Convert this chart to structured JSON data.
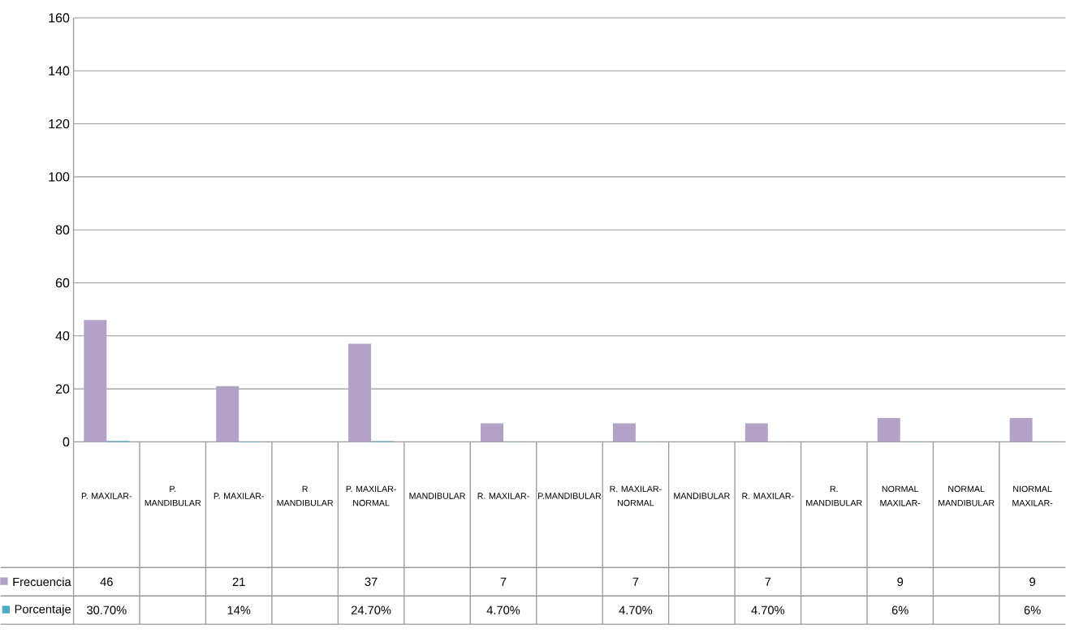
{
  "chart_data": {
    "type": "bar",
    "categories": [
      "P. MAXILAR-",
      "P. MANDIBULAR",
      "P. MAXILAR-",
      "R MANDIBULAR",
      "P. MAXILAR-NORMAL",
      "MANDIBULAR",
      "R. MAXILAR-",
      "P.MANDIBULAR",
      "R. MAXILAR-NORMAL",
      "MANDIBULAR",
      "R. MAXILAR-",
      "R. MANDIBULAR",
      "NORMAL MAXILAR-",
      "NORMAL MANDIBULAR",
      "NIORMAL MAXILAR-"
    ],
    "series": [
      {
        "name": "Frecuencia",
        "color": "#b3a2c7",
        "values": [
          46,
          null,
          21,
          null,
          37,
          null,
          7,
          null,
          7,
          null,
          7,
          null,
          9,
          null,
          9
        ],
        "value_labels": [
          "46",
          null,
          "21",
          null,
          "37",
          null,
          "7",
          null,
          "7",
          null,
          "7",
          null,
          "9",
          null,
          "9"
        ]
      },
      {
        "name": "Porcentaje",
        "color": "#4bacc6",
        "values": [
          0.307,
          null,
          0.14,
          null,
          0.247,
          null,
          0.047,
          null,
          0.047,
          null,
          0.047,
          null,
          0.06,
          null,
          0.06
        ],
        "value_labels": [
          "30.70%",
          null,
          "14%",
          null,
          "24.70%",
          null,
          "4.70%",
          null,
          "4.70%",
          null,
          "4.70%",
          null,
          "6%",
          null,
          "6%"
        ]
      }
    ],
    "ylim": [
      0,
      160
    ],
    "yticks": [
      0,
      20,
      40,
      60,
      80,
      100,
      120,
      140,
      160
    ],
    "grid": "y",
    "legend": "bottom left"
  }
}
